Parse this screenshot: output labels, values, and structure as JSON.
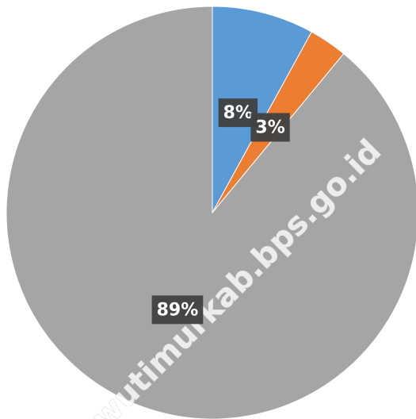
{
  "chart_data": {
    "type": "pie",
    "values": [
      8,
      3,
      89
    ],
    "value_labels": [
      "8%",
      "3%",
      "89%"
    ],
    "colors": [
      "#5b9bd5",
      "#ed7d31",
      "#a5a5a5"
    ],
    "watermark": "wutimurkab.bps.go.id"
  }
}
